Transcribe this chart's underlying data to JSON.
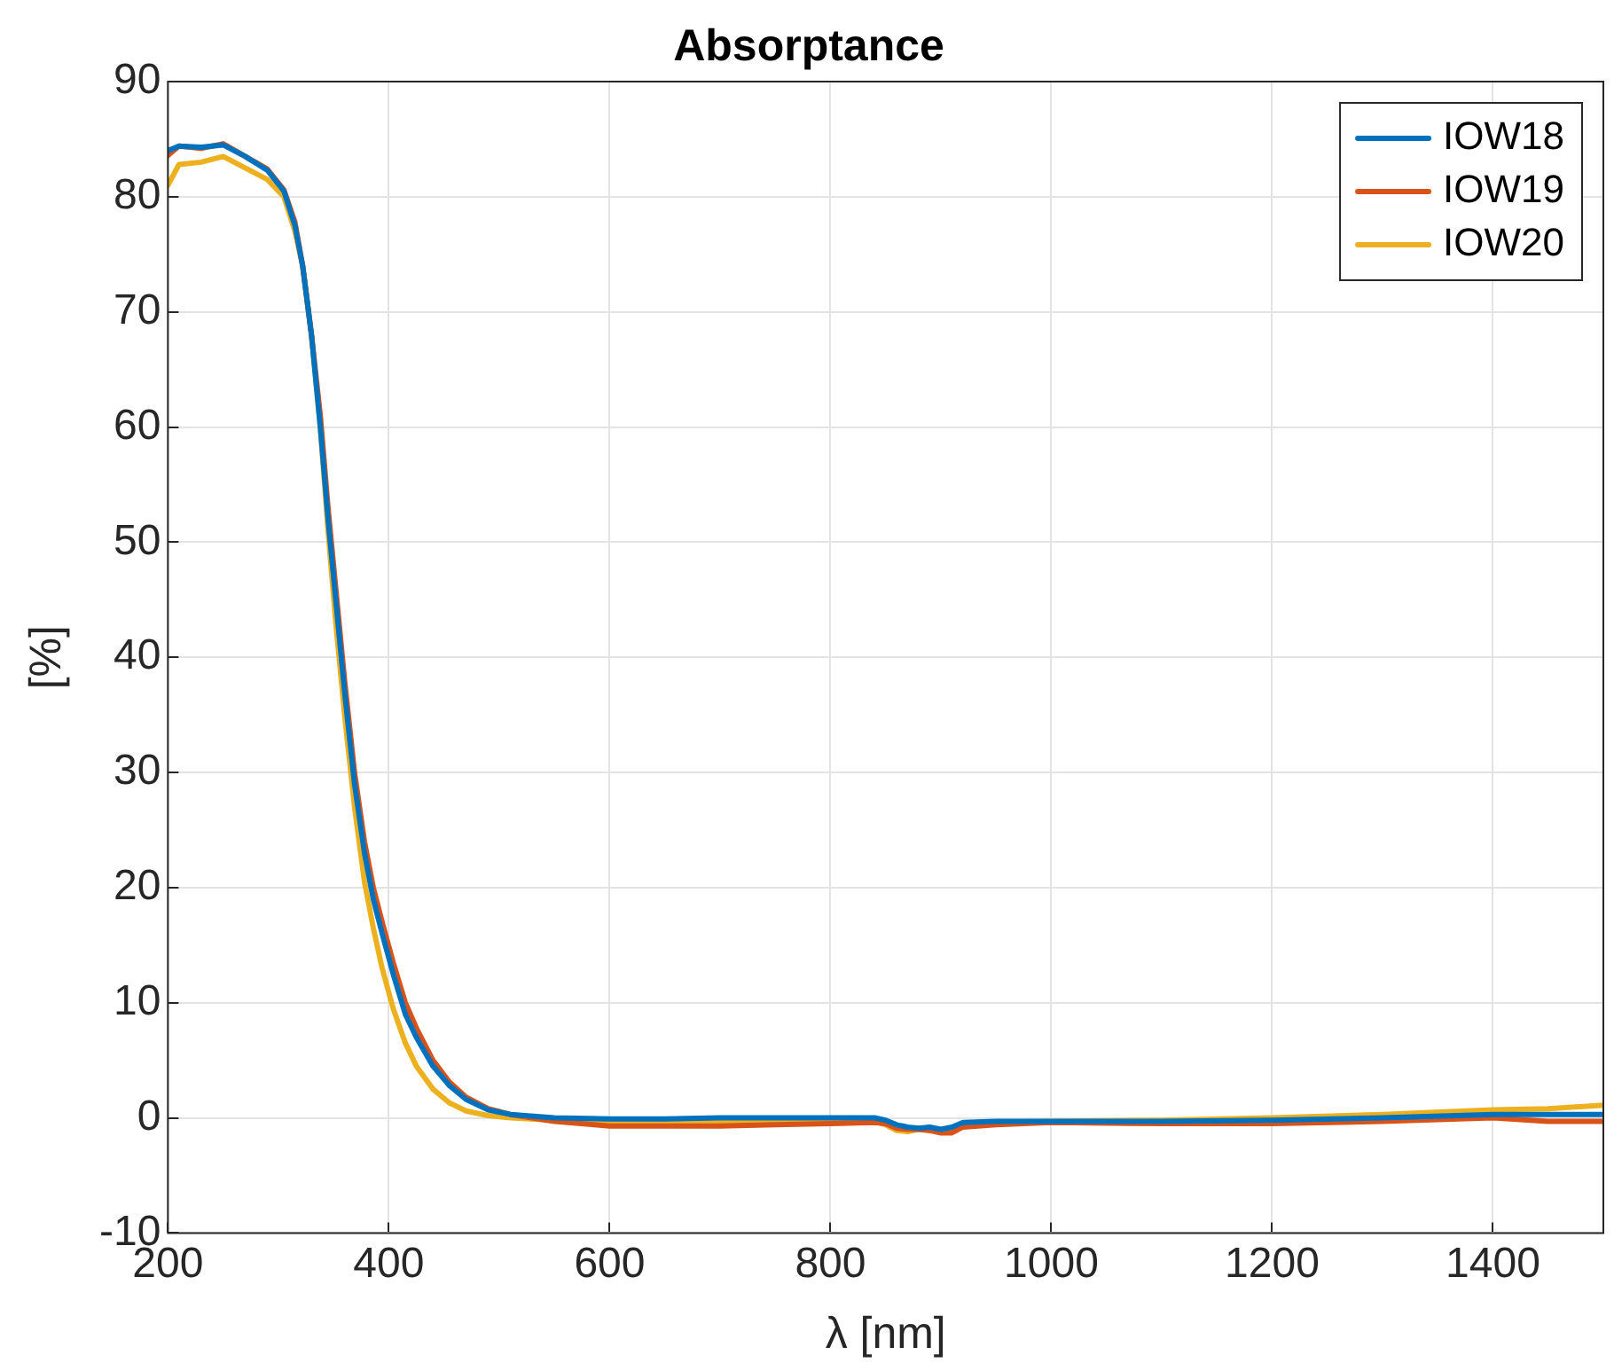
{
  "chart_data": {
    "type": "line",
    "title": "Absorptance",
    "xlabel": "λ [nm]",
    "ylabel": "[%]",
    "x": [
      200,
      210,
      230,
      250,
      270,
      290,
      305,
      315,
      322,
      330,
      338,
      345,
      352,
      360,
      369,
      378,
      386,
      394,
      404,
      415,
      425,
      440,
      455,
      470,
      490,
      510,
      550,
      600,
      650,
      700,
      750,
      800,
      840,
      850,
      860,
      870,
      880,
      890,
      900,
      910,
      920,
      950,
      1000,
      1100,
      1200,
      1300,
      1400,
      1450,
      1500
    ],
    "series": [
      {
        "name": "IOW18",
        "color": "#0072bd",
        "values": [
          84,
          84.4,
          84.3,
          84.5,
          83.5,
          82.3,
          80.5,
          77.5,
          74,
          68,
          60,
          52,
          45,
          37,
          29,
          23,
          19,
          16,
          12.5,
          9,
          7,
          4.5,
          2.8,
          1.6,
          0.7,
          0.3,
          0,
          -0.1,
          -0.1,
          0,
          0,
          0,
          0,
          -0.2,
          -0.6,
          -0.8,
          -0.9,
          -0.8,
          -1,
          -0.8,
          -0.4,
          -0.3,
          -0.3,
          -0.3,
          -0.2,
          0,
          0.3,
          0.3,
          0.3
        ]
      },
      {
        "name": "IOW19",
        "color": "#d95319",
        "values": [
          83.6,
          84.4,
          84.2,
          84.6,
          83.5,
          82.4,
          80.6,
          77.8,
          74,
          68,
          61,
          53,
          46,
          38,
          30,
          24,
          20,
          17,
          13.5,
          10,
          7.8,
          5,
          3.1,
          1.8,
          0.8,
          0.3,
          -0.3,
          -0.7,
          -0.7,
          -0.7,
          -0.6,
          -0.5,
          -0.4,
          -0.5,
          -0.9,
          -1,
          -1,
          -1.1,
          -1.3,
          -1.3,
          -0.8,
          -0.6,
          -0.4,
          -0.5,
          -0.5,
          -0.3,
          0,
          -0.3,
          -0.3
        ]
      },
      {
        "name": "IOW20",
        "color": "#edb120",
        "values": [
          81,
          82.8,
          83,
          83.5,
          82.5,
          81.5,
          80,
          77,
          74,
          68,
          60,
          51,
          43,
          35,
          27,
          20.5,
          16.5,
          13,
          9.5,
          6.5,
          4.5,
          2.5,
          1.3,
          0.6,
          0.2,
          0,
          -0.2,
          -0.4,
          -0.4,
          -0.4,
          -0.3,
          -0.3,
          -0.3,
          -0.6,
          -1.1,
          -1.2,
          -1,
          -1.1,
          -1.2,
          -1.1,
          -0.6,
          -0.4,
          -0.3,
          -0.2,
          0,
          0.3,
          0.7,
          0.8,
          1.1
        ]
      }
    ],
    "xlim": [
      200,
      1500
    ],
    "xticks": [
      200,
      400,
      600,
      800,
      1000,
      1200,
      1400
    ],
    "ylim": [
      -10,
      90
    ],
    "yticks": [
      -10,
      0,
      10,
      20,
      30,
      40,
      50,
      60,
      70,
      80,
      90
    ],
    "grid": true,
    "legend": "top right",
    "marker": "none",
    "line_style": "solid"
  }
}
